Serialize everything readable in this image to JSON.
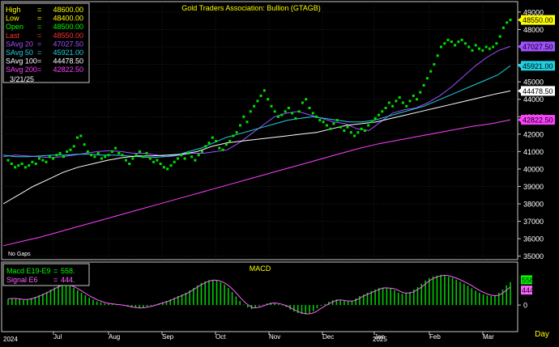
{
  "colors": {
    "bg": "#000000",
    "frame": "#c8c8c8",
    "grid": "#3c3c3c",
    "price": "#00e000",
    "savg20": "#a050ff",
    "savg50": "#20d0e0",
    "savg100": "#ffffff",
    "savg200": "#ff40ff",
    "macd": "#00cc00",
    "signal": "#ff60ff",
    "title": "#ffff00",
    "axis_text": "#ffffff"
  },
  "chart_data": [
    {
      "type": "scatter",
      "title": "Gold Traders Association: Bullion (GTAGB)",
      "note": "No Gaps",
      "ylim": [
        34800,
        49600
      ],
      "y_ticks": [
        35000,
        36000,
        37000,
        38000,
        39000,
        40000,
        41000,
        42000,
        43000,
        44000,
        45000,
        46000,
        47000,
        48000,
        49000
      ],
      "stats": [
        {
          "label": "High",
          "value": "48600.00",
          "color": "#ffff00"
        },
        {
          "label": "Low",
          "value": "48400.00",
          "color": "#ffff00"
        },
        {
          "label": "Open",
          "value": "48500.00",
          "color": "#00ff00"
        },
        {
          "label": "Last",
          "value": "48550.00",
          "color": "#ff3030"
        },
        {
          "label": "SAvg 20",
          "value": "47027.50",
          "color": "#a050ff"
        },
        {
          "label": "SAvg 50",
          "value": "45921.00",
          "color": "#20d0e0"
        },
        {
          "label": "SAvg 100",
          "value": "44478.50",
          "color": "#ffffff"
        },
        {
          "label": "SAvg 200",
          "value": "42822.50",
          "color": "#ff40ff"
        }
      ],
      "date": "3/21/25",
      "last_labels": [
        {
          "text": "48550.00",
          "value": 48550,
          "color": "#ffff00"
        },
        {
          "text": "47027.50",
          "value": 47027.5,
          "color": "#a050ff"
        },
        {
          "text": "45921.00",
          "value": 45921,
          "color": "#20d0e0"
        },
        {
          "text": "44478.50",
          "value": 44478.5,
          "color": "#ffffff"
        },
        {
          "text": "42822.50",
          "value": 42822.5,
          "color": "#ff40ff"
        }
      ],
      "price_points": [
        40500,
        40300,
        40100,
        40200,
        40300,
        40100,
        40200,
        40400,
        40300,
        40600,
        40500,
        40400,
        40700,
        40600,
        40800,
        40900,
        40700,
        41000,
        41100,
        41300,
        41800,
        41900,
        41400,
        41000,
        40800,
        40700,
        40900,
        40600,
        40700,
        40800,
        41000,
        41200,
        40900,
        40800,
        40500,
        40300,
        40600,
        40800,
        41000,
        40700,
        40900,
        40600,
        40400,
        40500,
        40300,
        40100,
        40000,
        40200,
        40400,
        40600,
        40800,
        40600,
        40900,
        40700,
        40500,
        40800,
        41000,
        41300,
        41500,
        41800,
        41600,
        41200,
        41100,
        41400,
        41600,
        41900,
        42100,
        42500,
        43000,
        42700,
        43300,
        43600,
        43900,
        44200,
        44500,
        44000,
        43600,
        43300,
        43000,
        43100,
        43300,
        43500,
        43200,
        42900,
        43300,
        43800,
        44000,
        43500,
        43200,
        43000,
        42800,
        42700,
        42500,
        42300,
        42600,
        42800,
        42400,
        42200,
        42400,
        42100,
        41900,
        42100,
        42300,
        42200,
        42500,
        42700,
        42900,
        43100,
        43300,
        43500,
        43800,
        43600,
        43900,
        44100,
        43800,
        43600,
        43900,
        44200,
        44000,
        44400,
        44800,
        45200,
        45600,
        46000,
        46500,
        47000,
        47200,
        47400,
        47300,
        47100,
        47300,
        47400,
        47200,
        47000,
        46800,
        47100,
        46900,
        46800,
        47000,
        46900,
        47000,
        47200,
        47600,
        48100,
        48400,
        48550
      ],
      "series": [
        {
          "name": "SAvg 20",
          "values": [
            40700,
            40800,
            40750,
            40700,
            40650,
            40700,
            40800,
            40900,
            41000,
            41050,
            41000,
            40900,
            40900,
            40800,
            40700,
            40800,
            40900,
            40900,
            41000,
            41100,
            41500,
            42000,
            42500,
            43000,
            43200,
            43300,
            43100,
            42900,
            42700,
            42600,
            42300,
            42200,
            42700,
            43200,
            43400,
            43500,
            43800,
            44200,
            44700,
            45300,
            45900,
            46400,
            46800,
            47027.5
          ]
        },
        {
          "name": "SAvg 50",
          "values": [
            40800,
            40700,
            40700,
            40750,
            40800,
            40800,
            40850,
            40850,
            40800,
            40800,
            40750,
            40700,
            40650,
            40700,
            40800,
            41000,
            41200,
            41500,
            41800,
            42000,
            42200,
            42400,
            42600,
            42800,
            42900,
            43000,
            42900,
            42800,
            42700,
            42700,
            42800,
            43000,
            43200,
            43400,
            43600,
            43900,
            44200,
            44500,
            44800,
            45100,
            45400,
            45921
          ]
        },
        {
          "name": "SAvg 100",
          "values": [
            38000,
            38500,
            39000,
            39400,
            39800,
            40100,
            40300,
            40500,
            40650,
            40750,
            40750,
            40800,
            40850,
            41000,
            41300,
            41500,
            41600,
            41700,
            41800,
            41900,
            42000,
            42100,
            42300,
            42500,
            42600,
            42700,
            42900,
            43100,
            43300,
            43500,
            43700,
            43900,
            44100,
            44300,
            44478.5
          ]
        },
        {
          "name": "SAvg 200",
          "values": [
            35600,
            35850,
            36100,
            36400,
            36700,
            37000,
            37300,
            37600,
            37900,
            38200,
            38500,
            38800,
            39100,
            39400,
            39700,
            40000,
            40300,
            40600,
            40900,
            41200,
            41450,
            41650,
            41850,
            42050,
            42250,
            42450,
            42600,
            42822.5
          ]
        }
      ]
    },
    {
      "type": "bar",
      "title": "MACD",
      "ylim": [
        -650,
        1050
      ],
      "y_ticks": [
        0
      ],
      "legend": [
        {
          "label": "Macd  E19-E9",
          "value": "558.",
          "color": "#00ff00"
        },
        {
          "label": "Signal  E6",
          "value": "444.",
          "color": "#ff60ff"
        }
      ],
      "last_labels": [
        {
          "text": "558",
          "value": 558,
          "color": "#00ff00"
        },
        {
          "text": "444",
          "value": 444,
          "color": "#ff60ff"
        }
      ],
      "macd_values": [
        150,
        170,
        160,
        140,
        120,
        140,
        170,
        200,
        240,
        280,
        320,
        380,
        430,
        480,
        520,
        500,
        470,
        420,
        360,
        300,
        240,
        180,
        130,
        90,
        60,
        40,
        30,
        20,
        10,
        0,
        -20,
        -40,
        -60,
        -70,
        -80,
        -60,
        -40,
        -20,
        10,
        40,
        70,
        100,
        140,
        180,
        220,
        260,
        300,
        360,
        420,
        480,
        540,
        580,
        610,
        620,
        600,
        560,
        500,
        420,
        320,
        210,
        100,
        10,
        -60,
        -100,
        -70,
        -30,
        10,
        40,
        60,
        50,
        20,
        -10,
        -50,
        -110,
        -160,
        -200,
        -220,
        -230,
        -200,
        -150,
        -80,
        -20,
        30,
        80,
        120,
        140,
        120,
        100,
        90,
        110,
        160,
        220,
        260,
        300,
        340,
        380,
        420,
        430,
        410,
        400,
        360,
        300,
        280,
        290,
        320,
        380,
        440,
        520,
        600,
        660,
        700,
        720,
        740,
        720,
        690,
        660,
        620,
        570,
        520,
        470,
        410,
        350,
        300,
        260,
        230,
        220,
        240,
        300,
        380,
        480,
        558
      ],
      "signal_values": [
        150,
        160,
        160,
        150,
        135,
        135,
        150,
        180,
        215,
        255,
        300,
        350,
        400,
        450,
        490,
        495,
        480,
        445,
        395,
        340,
        280,
        220,
        170,
        125,
        90,
        60,
        40,
        28,
        15,
        5,
        -10,
        -30,
        -50,
        -62,
        -72,
        -65,
        -50,
        -30,
        0,
        30,
        60,
        90,
        125,
        165,
        205,
        245,
        285,
        340,
        400,
        460,
        515,
        560,
        595,
        610,
        600,
        570,
        520,
        445,
        355,
        250,
        145,
        50,
        -20,
        -70,
        -65,
        -40,
        -5,
        25,
        50,
        48,
        28,
        0,
        -38,
        -90,
        -138,
        -180,
        -205,
        -218,
        -205,
        -165,
        -105,
        -45,
        10,
        60,
        100,
        125,
        118,
        102,
        95,
        108,
        150,
        205,
        250,
        290,
        330,
        370,
        408,
        422,
        412,
        402,
        370,
        320,
        292,
        293,
        315,
        370,
        425,
        500,
        580,
        640,
        685,
        710,
        730,
        718,
        692,
        662,
        625,
        578,
        530,
        480,
        420,
        362,
        312,
        272,
        242,
        228,
        238,
        290,
        365,
        444
      ]
    }
  ],
  "x_axis": {
    "labels": [
      {
        "text": "Jul",
        "date": "2024-07"
      },
      {
        "text": "Aug",
        "date": "2024-08"
      },
      {
        "text": "Sep",
        "date": "2024-09"
      },
      {
        "text": "Oct",
        "date": "2024-10"
      },
      {
        "text": "Nov",
        "date": "2024-11"
      },
      {
        "text": "Dec",
        "date": "2024-12"
      },
      {
        "text": "Jan",
        "date": "2025-01"
      },
      {
        "text": "Feb",
        "date": "2025-02"
      },
      {
        "text": "Mar",
        "date": "2025-03"
      }
    ],
    "years": [
      {
        "text": "2024",
        "date": "2024-06"
      },
      {
        "text": "2025",
        "date": "2025-01"
      }
    ],
    "period_label": "Day"
  }
}
